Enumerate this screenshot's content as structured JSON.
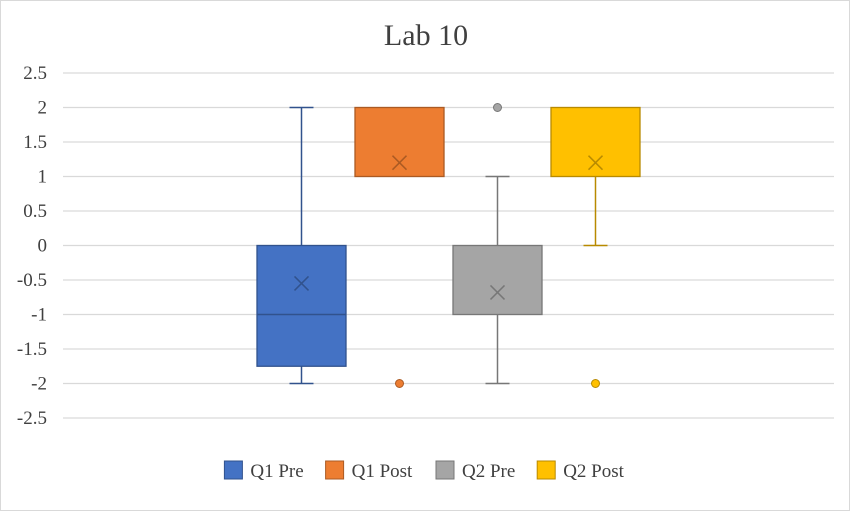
{
  "chart_data": {
    "type": "boxplot",
    "title": "Lab 10",
    "xlabel": "",
    "ylabel": "",
    "ylim": [
      -2.5,
      2.5
    ],
    "y_ticks": [
      "2.5",
      "2",
      "1.5",
      "1",
      "0.5",
      "0",
      "-0.5",
      "-1",
      "-1.5",
      "-2",
      "-2.5"
    ],
    "grid": true,
    "legend_position": "bottom",
    "series": [
      {
        "name": "Q1 Pre",
        "color": "#4472C4",
        "min": -2,
        "q1": -1.75,
        "median": -1,
        "q3": 0,
        "max": 2,
        "mean": -0.55,
        "outliers": []
      },
      {
        "name": "Q1 Post",
        "color": "#ED7D31",
        "min": 1,
        "q1": 1,
        "median": 2,
        "q3": 2,
        "max": 2,
        "mean": 1.2,
        "outliers": [
          -2
        ]
      },
      {
        "name": "Q2 Pre",
        "color": "#A5A5A5",
        "min": -2,
        "q1": -1,
        "median": 0,
        "q3": 0,
        "max": 1,
        "mean": -0.68,
        "outliers": [
          2
        ]
      },
      {
        "name": "Q2 Post",
        "color": "#FFC000",
        "min": 0,
        "q1": 1,
        "median": 2,
        "q3": 2,
        "max": 2,
        "mean": 1.2,
        "outliers": [
          -2
        ]
      }
    ]
  }
}
